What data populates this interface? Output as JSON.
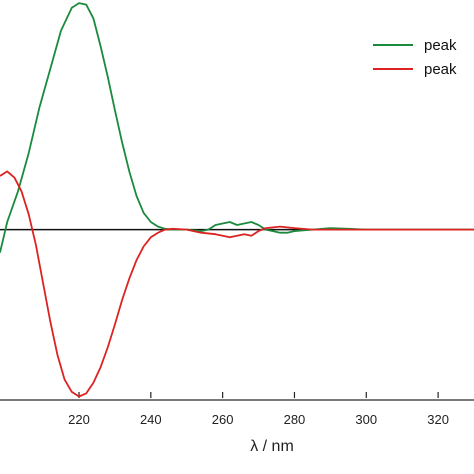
{
  "chart_data": {
    "type": "line",
    "xlabel": "λ / nm",
    "ylabel": "",
    "title": "",
    "xlim": [
      198,
      330
    ],
    "ylim": [
      -1.1,
      1.5
    ],
    "x_ticks": [
      220,
      240,
      260,
      280,
      300,
      320
    ],
    "grid": false,
    "legend_position": "top-right",
    "baseline_y": 0,
    "series": [
      {
        "name": "peak",
        "color": "#1a8a3c",
        "points": [
          [
            198,
            -0.15
          ],
          [
            199,
            -0.05
          ],
          [
            200,
            0.05
          ],
          [
            203,
            0.25
          ],
          [
            206,
            0.5
          ],
          [
            209,
            0.8
          ],
          [
            212,
            1.05
          ],
          [
            215,
            1.3
          ],
          [
            218,
            1.45
          ],
          [
            220,
            1.48
          ],
          [
            222,
            1.47
          ],
          [
            224,
            1.38
          ],
          [
            226,
            1.2
          ],
          [
            228,
            1.0
          ],
          [
            230,
            0.78
          ],
          [
            232,
            0.57
          ],
          [
            234,
            0.38
          ],
          [
            236,
            0.22
          ],
          [
            238,
            0.11
          ],
          [
            240,
            0.05
          ],
          [
            242,
            0.02
          ],
          [
            244,
            0.005
          ],
          [
            246,
            0.0
          ],
          [
            250,
            0.0
          ],
          [
            254,
            -0.01
          ],
          [
            256,
            0.0
          ],
          [
            258,
            0.03
          ],
          [
            260,
            0.04
          ],
          [
            262,
            0.05
          ],
          [
            264,
            0.03
          ],
          [
            266,
            0.04
          ],
          [
            268,
            0.05
          ],
          [
            270,
            0.03
          ],
          [
            272,
            0.0
          ],
          [
            274,
            -0.01
          ],
          [
            276,
            -0.02
          ],
          [
            278,
            -0.02
          ],
          [
            280,
            -0.01
          ],
          [
            285,
            0.0
          ],
          [
            290,
            0.01
          ],
          [
            295,
            0.005
          ],
          [
            300,
            0.0
          ],
          [
            305,
            0.0
          ],
          [
            310,
            0.0
          ],
          [
            320,
            0.0
          ],
          [
            330,
            0.0
          ]
        ]
      },
      {
        "name": "peak",
        "color": "#dd2222",
        "points": [
          [
            198,
            0.35
          ],
          [
            200,
            0.38
          ],
          [
            202,
            0.34
          ],
          [
            204,
            0.25
          ],
          [
            206,
            0.1
          ],
          [
            208,
            -0.1
          ],
          [
            210,
            -0.35
          ],
          [
            212,
            -0.6
          ],
          [
            214,
            -0.82
          ],
          [
            216,
            -0.98
          ],
          [
            218,
            -1.06
          ],
          [
            220,
            -1.09
          ],
          [
            222,
            -1.07
          ],
          [
            224,
            -1.0
          ],
          [
            226,
            -0.9
          ],
          [
            228,
            -0.77
          ],
          [
            230,
            -0.62
          ],
          [
            232,
            -0.46
          ],
          [
            234,
            -0.32
          ],
          [
            236,
            -0.2
          ],
          [
            238,
            -0.11
          ],
          [
            240,
            -0.05
          ],
          [
            242,
            -0.02
          ],
          [
            244,
            0.0
          ],
          [
            246,
            0.005
          ],
          [
            250,
            0.0
          ],
          [
            254,
            -0.02
          ],
          [
            258,
            -0.03
          ],
          [
            260,
            -0.04
          ],
          [
            262,
            -0.05
          ],
          [
            264,
            -0.04
          ],
          [
            266,
            -0.03
          ],
          [
            268,
            -0.04
          ],
          [
            270,
            -0.01
          ],
          [
            272,
            0.01
          ],
          [
            276,
            0.02
          ],
          [
            280,
            0.01
          ],
          [
            285,
            0.0
          ],
          [
            290,
            0.0
          ],
          [
            300,
            0.0
          ],
          [
            310,
            0.0
          ],
          [
            320,
            0.0
          ],
          [
            330,
            0.0
          ]
        ]
      }
    ]
  }
}
